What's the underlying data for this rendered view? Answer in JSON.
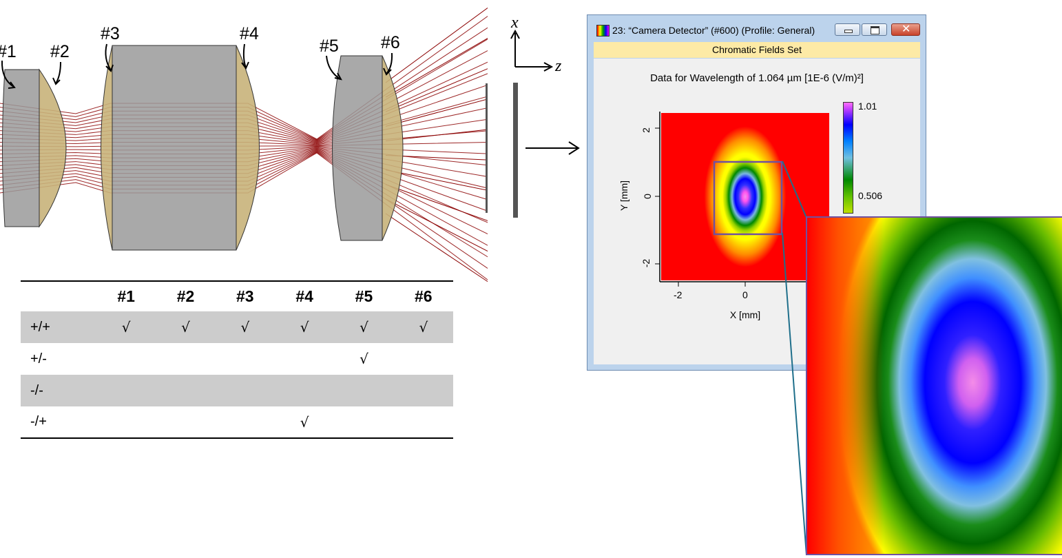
{
  "lens_labels": [
    "#1",
    "#2",
    "#3",
    "#4",
    "#5",
    "#6"
  ],
  "axes": {
    "x_label": "x",
    "z_label": "z"
  },
  "table": {
    "headers": [
      "",
      "#1",
      "#2",
      "#3",
      "#4",
      "#5",
      "#6"
    ],
    "rows": [
      {
        "label": "+/+",
        "cells": [
          "√",
          "√",
          "√",
          "√",
          "√",
          "√"
        ]
      },
      {
        "label": "+/-",
        "cells": [
          "",
          "",
          "",
          "",
          "√",
          ""
        ]
      },
      {
        "label": "-/-",
        "cells": [
          "",
          "",
          "",
          "",
          "",
          ""
        ]
      },
      {
        "label": "-/+",
        "cells": [
          "",
          "",
          "",
          "√",
          "",
          ""
        ]
      }
    ]
  },
  "window": {
    "title": "23: “Camera Detector” (#600) (Profile: General)",
    "close_symbol": "✕",
    "subheader": "Chromatic Fields Set",
    "plot_title": "Data for Wavelength of 1.064 µm  [1E-6 (V/m)²]",
    "y_axis_title": "Y [mm]",
    "x_axis_title": "X [mm]",
    "x_ticks": [
      "-2",
      "0"
    ],
    "y_ticks": [
      "2",
      "0",
      "-2"
    ],
    "colorbar_max": "1.01",
    "colorbar_mid": "0.506"
  },
  "colors": {
    "lens_gray": "#a0a0a0",
    "lens_gold": "#c8b27a",
    "ray_red": "#8b0000",
    "selection_purple": "#7050a0",
    "connector_teal": "#1f6f8b"
  },
  "icons": [
    "minimize-icon",
    "maximize-icon",
    "close-icon",
    "app-icon"
  ]
}
